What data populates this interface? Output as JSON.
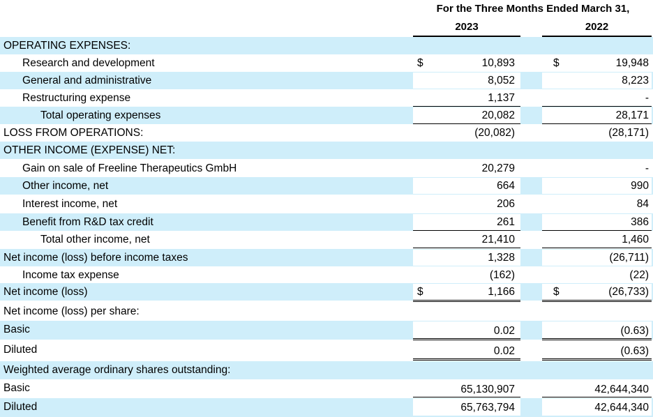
{
  "header": {
    "period_title": "For the Three Months Ended March 31,",
    "col_2023": "2023",
    "col_2022": "2022"
  },
  "rows": [
    {
      "label": "OPERATING EXPENSES:",
      "v2023": "",
      "v2022": ""
    },
    {
      "label": "Research and development",
      "v2023": "10,893",
      "v2022": "19,948",
      "dollar_2023": "$",
      "dollar_2022": "$"
    },
    {
      "label": "General and administrative",
      "v2023": "8,052",
      "v2022": "8,223"
    },
    {
      "label": "Restructuring expense",
      "v2023": "1,137",
      "v2022": "-"
    },
    {
      "label": "Total operating expenses",
      "v2023": "20,082",
      "v2022": "28,171"
    },
    {
      "label": "LOSS FROM OPERATIONS:",
      "v2023": "(20,082)",
      "v2022": "(28,171)"
    },
    {
      "label": "OTHER INCOME (EXPENSE) NET:",
      "v2023": "",
      "v2022": ""
    },
    {
      "label": "Gain on sale of Freeline Therapeutics GmbH",
      "v2023": "20,279",
      "v2022": "-"
    },
    {
      "label": "Other income, net",
      "v2023": "664",
      "v2022": "990"
    },
    {
      "label": "Interest income, net",
      "v2023": "206",
      "v2022": "84"
    },
    {
      "label": "Benefit from R&D tax credit",
      "v2023": "261",
      "v2022": "386"
    },
    {
      "label": "Total other income, net",
      "v2023": "21,410",
      "v2022": "1,460"
    },
    {
      "label": "Net income (loss) before income taxes",
      "v2023": "1,328",
      "v2022": "(26,711)"
    },
    {
      "label": "Income tax expense",
      "v2023": "(162)",
      "v2022": "(22)"
    },
    {
      "label": "Net income (loss)",
      "v2023": "1,166",
      "v2022": "(26,733)",
      "dollar_2023": "$",
      "dollar_2022": "$"
    },
    {
      "label": "Net income (loss) per share:",
      "v2023": "",
      "v2022": ""
    },
    {
      "label": "Basic",
      "v2023": "0.02",
      "v2022": "(0.63)"
    },
    {
      "label": "Diluted",
      "v2023": "0.02",
      "v2022": "(0.63)"
    },
    {
      "label": "Weighted average ordinary shares outstanding:",
      "v2023": "",
      "v2022": ""
    },
    {
      "label": "Basic",
      "v2023": "65,130,907",
      "v2022": "42,644,340"
    },
    {
      "label": "Diluted",
      "v2023": "65,763,794",
      "v2022": "42,644,340"
    }
  ]
}
